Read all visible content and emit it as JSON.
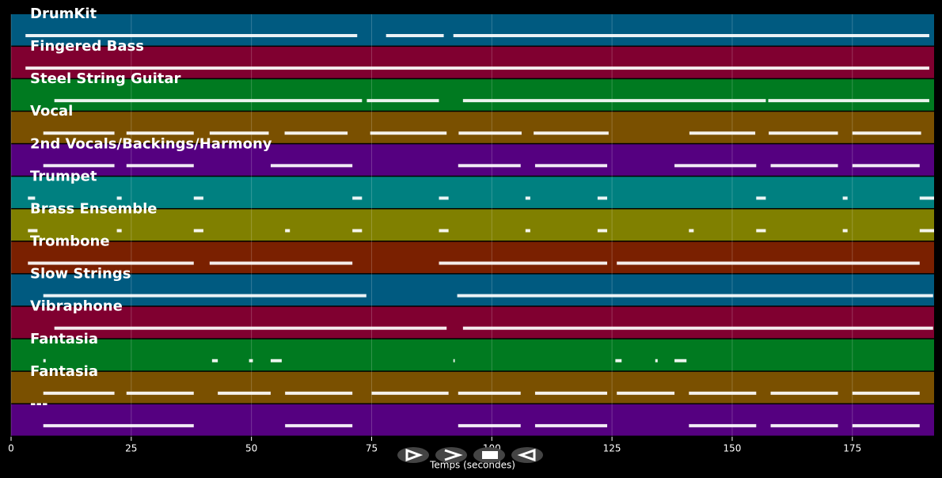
{
  "chart_data": {
    "type": "pianoroll",
    "xlabel": "Temps (secondes)",
    "xlim": [
      0,
      192
    ],
    "xticks": [
      0,
      25,
      50,
      75,
      100,
      125,
      150,
      175
    ],
    "grid": true,
    "tracks": [
      {
        "name": "DrumKit",
        "color": "#005a80",
        "notes": [
          [
            3,
            72
          ],
          [
            78,
            90
          ],
          [
            92,
            191
          ]
        ]
      },
      {
        "name": "Fingered Bass",
        "color": "#800030",
        "notes": [
          [
            3,
            191
          ]
        ]
      },
      {
        "name": "Steel String Guitar",
        "color": "#007a20",
        "notes": [
          [
            9,
            73
          ],
          [
            74,
            89
          ],
          [
            94,
            157
          ],
          [
            157.5,
            191
          ]
        ]
      },
      {
        "name": "Vocal",
        "color": "#7a5000",
        "notes": [
          [
            6.7,
            21.5
          ],
          [
            24,
            38
          ],
          [
            41.3,
            53.6
          ],
          [
            56.9,
            70
          ],
          [
            74.7,
            90.6
          ],
          [
            93.1,
            106.2
          ],
          [
            108.7,
            124.3
          ],
          [
            141.1,
            154.8
          ],
          [
            157.6,
            172
          ],
          [
            175,
            189.3
          ]
        ]
      },
      {
        "name": "2nd Vocals/Backings/Harmony",
        "color": "#550080",
        "notes": [
          [
            6.7,
            21.5
          ],
          [
            24,
            38
          ],
          [
            54,
            71
          ],
          [
            93,
            106
          ],
          [
            109,
            124
          ],
          [
            138,
            155
          ],
          [
            158,
            172
          ],
          [
            175,
            189
          ]
        ]
      },
      {
        "name": "Trumpet",
        "color": "#008080",
        "notes": [
          [
            3.5,
            5
          ],
          [
            22,
            23
          ],
          [
            38,
            40
          ],
          [
            71,
            73
          ],
          [
            89,
            91
          ],
          [
            107,
            108
          ],
          [
            122,
            124
          ],
          [
            155,
            157
          ],
          [
            173,
            174
          ],
          [
            189,
            192
          ]
        ]
      },
      {
        "name": "Brass Ensemble",
        "color": "#808000",
        "notes": [
          [
            3.5,
            5.5
          ],
          [
            22,
            23
          ],
          [
            38,
            40
          ],
          [
            57,
            58
          ],
          [
            71,
            73
          ],
          [
            89,
            91
          ],
          [
            107,
            108
          ],
          [
            122,
            124
          ],
          [
            141,
            142
          ],
          [
            155,
            157
          ],
          [
            173,
            174
          ],
          [
            189,
            192
          ]
        ]
      },
      {
        "name": "Trombone",
        "color": "#7a2000",
        "notes": [
          [
            3.5,
            38
          ],
          [
            41.3,
            71
          ],
          [
            89,
            124
          ],
          [
            126,
            189
          ]
        ]
      },
      {
        "name": "Slow Strings",
        "color": "#005a80",
        "notes": [
          [
            6.7,
            73.9
          ],
          [
            92.8,
            191.8
          ]
        ]
      },
      {
        "name": "Vibraphone",
        "color": "#800030",
        "notes": [
          [
            9,
            90.6
          ],
          [
            94,
            191.8
          ]
        ]
      },
      {
        "name": "Fantasia",
        "color": "#007a20",
        "notes": [
          [
            6.7,
            7.2
          ],
          [
            41.8,
            43
          ],
          [
            49.5,
            50.3
          ],
          [
            54,
            56.3
          ],
          [
            92,
            92.3
          ],
          [
            125.7,
            127
          ],
          [
            134,
            134.5
          ],
          [
            138,
            140.5
          ]
        ]
      },
      {
        "name": "Fantasia",
        "color": "#7a5000",
        "notes": [
          [
            6.7,
            21.5
          ],
          [
            24,
            38
          ],
          [
            43,
            54
          ],
          [
            57,
            71
          ],
          [
            75,
            91
          ],
          [
            93,
            106
          ],
          [
            109,
            124
          ],
          [
            126,
            138
          ],
          [
            141,
            155
          ],
          [
            158,
            172
          ],
          [
            175,
            189
          ]
        ]
      },
      {
        "name": "---",
        "color": "#550080",
        "notes": [
          [
            6.7,
            38
          ],
          [
            57,
            71
          ],
          [
            93,
            106
          ],
          [
            109,
            124
          ],
          [
            141,
            155
          ],
          [
            158,
            172
          ],
          [
            175,
            189
          ]
        ]
      }
    ]
  }
}
